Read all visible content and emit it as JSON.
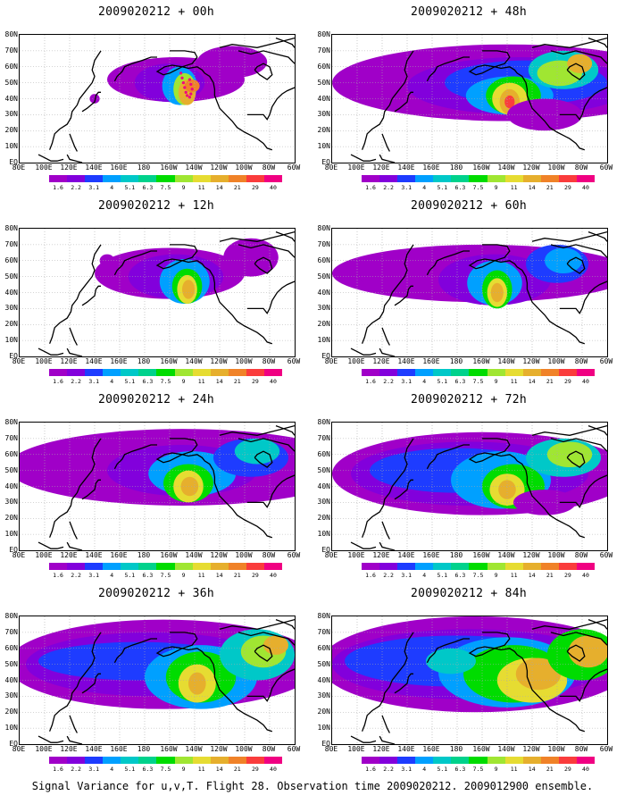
{
  "figure": {
    "caption": "Signal Variance for u,v,T. Flight 28. Observation time 2009020212. 2009012900 ensemble."
  },
  "panels": [
    {
      "title": "2009020212 + 00h"
    },
    {
      "title": "2009020212 + 48h"
    },
    {
      "title": "2009020212 + 12h"
    },
    {
      "title": "2009020212 + 60h"
    },
    {
      "title": "2009020212 + 24h"
    },
    {
      "title": "2009020212 + 72h"
    },
    {
      "title": "2009020212 + 36h"
    },
    {
      "title": "2009020212 + 84h"
    }
  ],
  "axes": {
    "lat_labels": [
      "80N",
      "70N",
      "60N",
      "50N",
      "40N",
      "30N",
      "20N",
      "10N",
      "EQ"
    ],
    "lon_labels": [
      "80E",
      "100E",
      "120E",
      "140E",
      "160E",
      "180",
      "160W",
      "140W",
      "120W",
      "100W",
      "80W",
      "60W"
    ]
  },
  "colorbar": {
    "labels": [
      "1.6",
      "2.2",
      "3.1",
      "4",
      "5.1",
      "6.3",
      "7.5",
      "9",
      "11",
      "14",
      "21",
      "29",
      "40"
    ],
    "colors": [
      "#a000c8",
      "#8200dc",
      "#1e3cff",
      "#00a0ff",
      "#00c8c8",
      "#00d28c",
      "#00dc00",
      "#a0e632",
      "#e6dc32",
      "#e6af2d",
      "#f08228",
      "#fa3c3c",
      "#f00082"
    ]
  },
  "colors": {
    "background": "#ffffff",
    "land_outline": "#000000",
    "grid": "#aaaaaa",
    "storm_dots": "#f00082"
  }
}
